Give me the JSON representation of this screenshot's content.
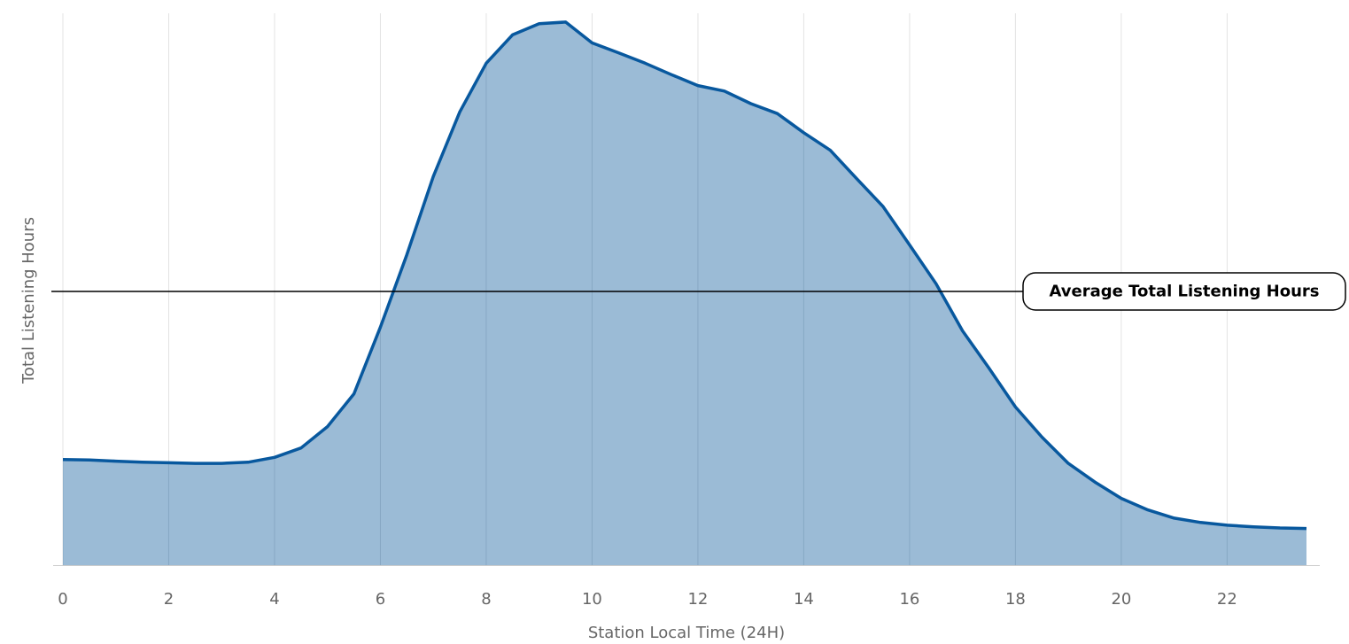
{
  "chart_data": {
    "type": "area",
    "title": "",
    "xlabel": "Station Local Time (24H)",
    "ylabel": "Total Listening Hours",
    "x_ticks": [
      0,
      2,
      4,
      6,
      8,
      10,
      12,
      14,
      16,
      18,
      20,
      22
    ],
    "xlim": [
      0,
      23.5
    ],
    "ylim": [
      0,
      100
    ],
    "grid": "vertical",
    "legend": "none",
    "series": [
      {
        "x": [
          0,
          0.5,
          1,
          1.5,
          2,
          2.5,
          3,
          3.5,
          4,
          4.5,
          5,
          5.5,
          6,
          6.5,
          7,
          7.5,
          8,
          8.5,
          9,
          9.5,
          10,
          10.5,
          11,
          11.5,
          12,
          12.5,
          13,
          13.5,
          14,
          14.5,
          15,
          15.5,
          16,
          16.5,
          17,
          17.5,
          18,
          18.5,
          19,
          19.5,
          20,
          20.5,
          21,
          21.5,
          22,
          22.5,
          23,
          23.5
        ],
        "values": [
          19.3,
          19.2,
          19.0,
          18.8,
          18.7,
          18.6,
          18.6,
          18.8,
          19.7,
          21.4,
          25.3,
          31.3,
          43.5,
          56.7,
          71.0,
          82.8,
          91.7,
          96.9,
          98.9,
          99.2,
          95.4,
          93.6,
          91.7,
          89.6,
          87.6,
          86.6,
          84.3,
          82.5,
          79.0,
          75.8,
          70.6,
          65.5,
          58.5,
          51.4,
          42.8,
          36.0,
          28.9,
          23.4,
          18.6,
          15.2,
          12.2,
          10.1,
          8.6,
          7.8,
          7.3,
          7.0,
          6.8,
          6.7
        ],
        "color": "#08589e",
        "fill": "#9bbbd6"
      }
    ],
    "reference_line": {
      "label": "Average Total Listening Hours",
      "value": 50
    }
  }
}
